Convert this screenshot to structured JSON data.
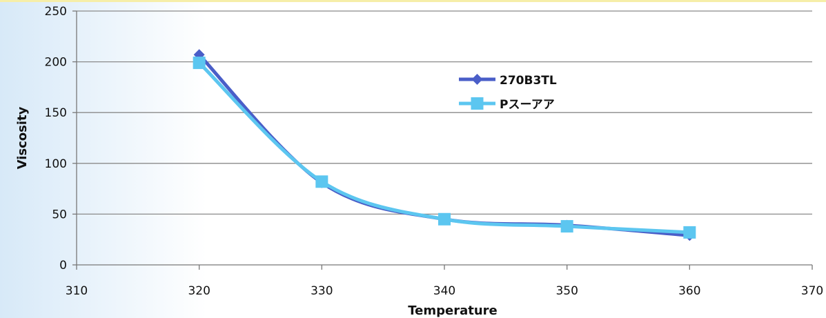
{
  "chart_data": {
    "type": "line",
    "xlabel": "Temperature",
    "ylabel": "Viscosity",
    "xlim": [
      310,
      370
    ],
    "ylim": [
      0,
      250
    ],
    "xticks": [
      310,
      320,
      330,
      340,
      350,
      360,
      370
    ],
    "yticks": [
      0,
      50,
      100,
      150,
      200,
      250
    ],
    "grid": "horizontal",
    "legend_position": "upper-center",
    "x": [
      320,
      330,
      340,
      350,
      360
    ],
    "series": [
      {
        "name": "270B3TL",
        "values": [
          207,
          81,
          45,
          39,
          29
        ],
        "color": "#4a5ec8",
        "marker": "diamond"
      },
      {
        "name": "Pスーアア",
        "values": [
          199,
          82,
          45,
          38,
          32
        ],
        "color": "#5cc6f0",
        "marker": "square"
      }
    ]
  }
}
